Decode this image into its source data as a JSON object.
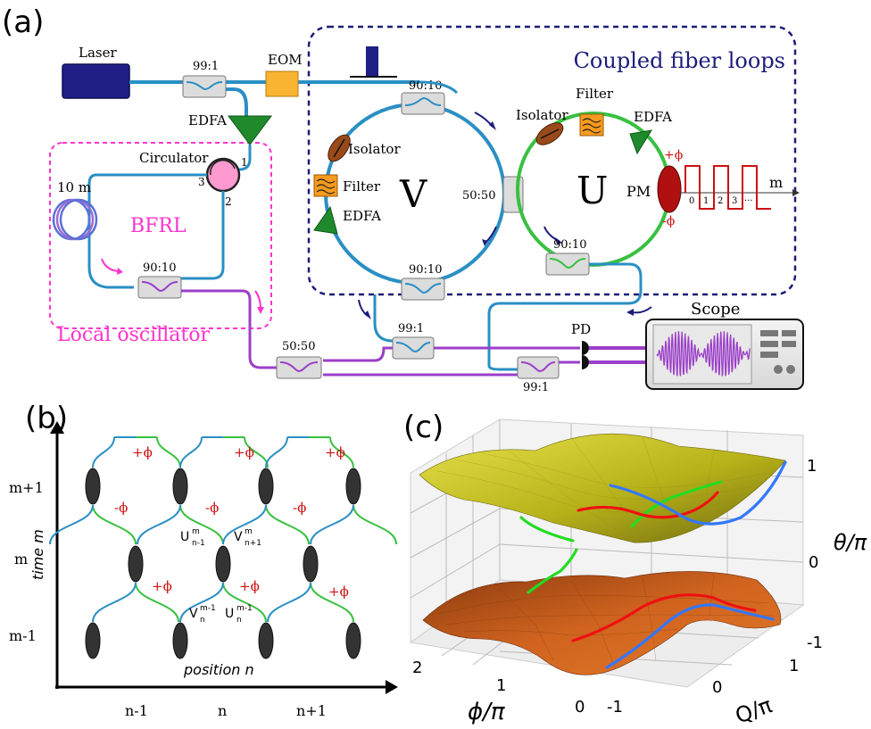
{
  "panel_a": {
    "label": "(a)",
    "laser": "Laser",
    "eom": "EOM",
    "coupler_99_1_a": "99:1",
    "edfa_main": "EDFA",
    "coupled_loops_title": "Coupled fiber loops",
    "coupler_90_10_top": "90:10",
    "isolator_v": "Isolator",
    "filter_v": "Filter",
    "edfa_v": "EDFA",
    "loop_v": "V",
    "coupler_50_50_mid": "50:50",
    "loop_u": "U",
    "isolator_u": "Isolator",
    "filter_u": "Filter",
    "edfa_u": "EDFA",
    "pm": "PM",
    "plus_phi": "+ϕ",
    "minus_phi": "-ϕ",
    "m_axis": "m",
    "ticks": [
      "0",
      "1",
      "2",
      "3",
      "···"
    ],
    "coupler_90_10_bottom_v": "90:10",
    "coupler_90_10_bottom_u": "90:10",
    "circulator": "Circulator",
    "port1": "1",
    "port2": "2",
    "port3": "3",
    "fiber_length": "10 m",
    "bfrl": "BFRL",
    "coupler_90_10_lo": "90:10",
    "local_oscillator": "Local oscillator",
    "coupler_50_50_bottom": "50:50",
    "coupler_99_1_b": "99:1",
    "coupler_99_1_c": "99:1",
    "pd": "PD",
    "scope": "Scope"
  },
  "panel_b": {
    "label": "(b)",
    "y_title": "time m",
    "x_title": "position n",
    "y_ticks": [
      "m+1",
      "m",
      "m-1"
    ],
    "x_ticks": [
      "n-1",
      "n",
      "n+1"
    ],
    "plus_phi": "+ϕ",
    "minus_phi": "-ϕ",
    "U_nm1_m": "U",
    "V_np1_m": "V",
    "V_n_mm1": "V",
    "U_n_mm1": "U"
  },
  "panel_c": {
    "label": "(c)",
    "z_label": "θ/π",
    "x_label": "ϕ/π",
    "y_label": "Q/π",
    "z_ticks": [
      "1",
      "0",
      "-1"
    ],
    "phi_ticks": [
      "2",
      "1",
      "0"
    ],
    "q_ticks": [
      "-1",
      "0",
      "1"
    ]
  },
  "colors": {
    "fiber_blue": "#2a8fc4",
    "loop_green": "#39c041",
    "lo_magenta": "#ff33cc",
    "fiber_purple": "#9b3fc9",
    "dark_navy": "#1c1c7a",
    "edfa_green": "#1f8a2c",
    "filter_orange": "#f79a1d",
    "eom_yellow": "#f9b531",
    "isolator_brown": "#9a4a1a",
    "pm_red": "#b01010",
    "phi_red": "#cc1111",
    "upper_band": "#c8c21a",
    "lower_band": "#b64a10",
    "line_red": "#ee1111",
    "line_green": "#22dd22",
    "line_blue": "#3377ff"
  }
}
